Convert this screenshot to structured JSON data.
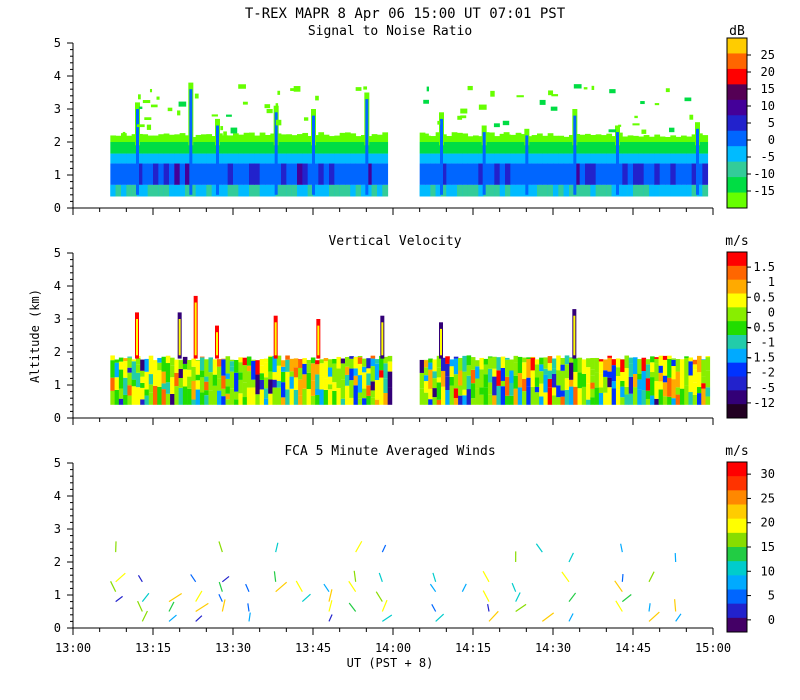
{
  "figure_title": "T-REX  MAPR  8 Apr 06  15:00 UT  07:01  PST",
  "colors": {
    "snr": [
      "#66ff00",
      "#00dd44",
      "#33cc99",
      "#00bbff",
      "#0066ff",
      "#2222cc",
      "#440099",
      "#550055",
      "#ff0000",
      "#ff6600",
      "#ffcc00"
    ],
    "vv": [
      "#220022",
      "#330077",
      "#2222cc",
      "#0033ff",
      "#00aaff",
      "#22ccaa",
      "#22dd00",
      "#88ee00",
      "#ffff00",
      "#ffaa00",
      "#ff6600",
      "#ff0000"
    ],
    "wind": [
      "#440066",
      "#2222cc",
      "#0066ff",
      "#00aaff",
      "#00cccc",
      "#22cc44",
      "#88dd00",
      "#ffff00",
      "#ffcc00",
      "#ff8800",
      "#ff3300",
      "#ff0000"
    ]
  },
  "chart_data": [
    {
      "type": "heatmap",
      "title": "Signal to Noise Ratio",
      "xlabel": "UT  (PST + 8)",
      "ylabel": "Altitude (km)",
      "xlim": [
        "13:00",
        "15:00"
      ],
      "ylim": [
        0,
        5
      ],
      "y_ticks": [
        "0",
        "1",
        "2",
        "3",
        "4",
        "5"
      ],
      "x_ticks": [
        "13:00",
        "13:15",
        "13:30",
        "13:45",
        "14:00",
        "14:15",
        "14:30",
        "14:45",
        "15:00"
      ],
      "colorbar_unit": "dB",
      "colorbar_ticks": [
        "25",
        "20",
        "15",
        "10",
        "5",
        "0",
        "-5",
        "-10",
        "-15"
      ],
      "data_gap": [
        "13:59",
        "14:05"
      ],
      "data_segments": [
        [
          "13:07",
          "13:59"
        ],
        [
          "14:05",
          "14:59"
        ]
      ],
      "levels": [
        {
          "top_km": 0.35,
          "value_db": -12
        },
        {
          "top_km": 0.7,
          "value_db": -5
        },
        {
          "top_km": 1.35,
          "value_db": 0
        },
        {
          "top_km": 1.65,
          "value_db": -5
        },
        {
          "top_km": 2.0,
          "value_db": -10
        },
        {
          "top_km": 2.3,
          "value_db": -15
        }
      ],
      "plumes": [
        {
          "time": "13:12",
          "top_km": 3.2
        },
        {
          "time": "13:22",
          "top_km": 3.8
        },
        {
          "time": "13:27",
          "top_km": 2.7
        },
        {
          "time": "13:38",
          "top_km": 3.1
        },
        {
          "time": "13:45",
          "top_km": 3.0
        },
        {
          "time": "13:55",
          "top_km": 3.5
        },
        {
          "time": "14:09",
          "top_km": 2.9
        },
        {
          "time": "14:17",
          "top_km": 2.5
        },
        {
          "time": "14:25",
          "top_km": 2.4
        },
        {
          "time": "14:34",
          "top_km": 3.0
        },
        {
          "time": "14:42",
          "top_km": 2.5
        },
        {
          "time": "14:57",
          "top_km": 2.6
        }
      ]
    },
    {
      "type": "heatmap",
      "title": "Vertical Velocity",
      "xlabel": "UT  (PST + 8)",
      "ylabel": "Altitude (km)",
      "xlim": [
        "13:00",
        "15:00"
      ],
      "ylim": [
        0,
        5
      ],
      "y_ticks": [
        "0",
        "1",
        "2",
        "3",
        "4",
        "5"
      ],
      "x_ticks": [
        "13:00",
        "13:15",
        "13:30",
        "13:45",
        "14:00",
        "14:15",
        "14:30",
        "14:45",
        "15:00"
      ],
      "colorbar_unit": "m/s",
      "colorbar_ticks": [
        "1.5",
        "1",
        "0.5",
        "0",
        "-0.5",
        "-1",
        "-1.5",
        "-2",
        "-5",
        "-12"
      ],
      "data_gap": [
        "13:59",
        "14:05"
      ],
      "data_segments": [
        [
          "13:07",
          "13:59"
        ],
        [
          "14:05",
          "14:59"
        ]
      ],
      "echo_top_km": 1.9,
      "plumes": [
        {
          "time": "13:12",
          "top_km": 3.2
        },
        {
          "time": "13:20",
          "top_km": 3.2
        },
        {
          "time": "13:23",
          "top_km": 3.7
        },
        {
          "time": "13:27",
          "top_km": 2.8
        },
        {
          "time": "13:38",
          "top_km": 3.1
        },
        {
          "time": "13:46",
          "top_km": 3.0
        },
        {
          "time": "13:58",
          "top_km": 3.1
        },
        {
          "time": "14:09",
          "top_km": 2.9
        },
        {
          "time": "14:34",
          "top_km": 3.3
        }
      ]
    },
    {
      "type": "scatter",
      "title": "FCA 5 Minute Averaged Winds",
      "xlabel": "UT  (PST + 8)",
      "ylabel": "Altitude (km)",
      "xlim": [
        "13:00",
        "15:00"
      ],
      "ylim": [
        0,
        5
      ],
      "y_ticks": [
        "0",
        "1",
        "2",
        "3",
        "4",
        "5"
      ],
      "x_ticks": [
        "13:00",
        "13:15",
        "13:30",
        "13:45",
        "14:00",
        "14:15",
        "14:30",
        "14:45",
        "15:00"
      ],
      "colorbar_unit": "m/s",
      "colorbar_ticks": [
        "30",
        "25",
        "20",
        "15",
        "10",
        "5",
        "0"
      ],
      "barb_times": [
        "13:08",
        "13:13",
        "13:18",
        "13:23",
        "13:28",
        "13:33",
        "13:38",
        "13:43",
        "13:48",
        "13:53",
        "13:58",
        "14:08",
        "14:13",
        "14:18",
        "14:23",
        "14:28",
        "14:33",
        "14:43",
        "14:48",
        "14:53"
      ],
      "barb_altitude_km": [
        0.2,
        0.5,
        0.8,
        1.1,
        1.4,
        1.7,
        2.0,
        2.3
      ],
      "barb_speed_range_ms": [
        3,
        22
      ]
    }
  ]
}
